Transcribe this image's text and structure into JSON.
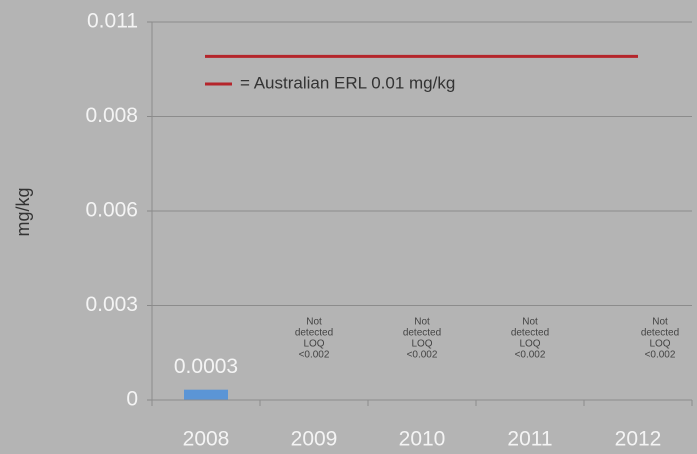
{
  "chart_data": {
    "type": "bar",
    "ylabel": "mg/kg",
    "categories": [
      "2008",
      "2009",
      "2010",
      "2011",
      "2012"
    ],
    "values": [
      0.0003,
      null,
      null,
      null,
      null
    ],
    "value_labels": [
      "0.0003",
      null,
      null,
      null,
      null
    ],
    "annotations": [
      null,
      [
        "Not",
        "detected",
        "LOQ",
        "<0.002"
      ],
      [
        "Not",
        "detected",
        "LOQ",
        "<0.002"
      ],
      [
        "Not",
        "detected",
        "LOQ",
        "<0.002"
      ],
      [
        "Not",
        "detected",
        "LOQ",
        "<0.002"
      ]
    ],
    "color": "#5b95d6",
    "ylim": [
      0,
      0.011
    ],
    "yticks": [
      0,
      {
        "value": 0.00275,
        "label": "0.003"
      },
      {
        "value": 0.0055,
        "label": "0.006"
      },
      {
        "value": 0.00825,
        "label": "0.008"
      },
      0.011
    ],
    "grid": true,
    "reference_line": {
      "value": 0.01,
      "color": "#b5252b",
      "label": "= Australian ERL 0.01 mg/kg"
    }
  }
}
